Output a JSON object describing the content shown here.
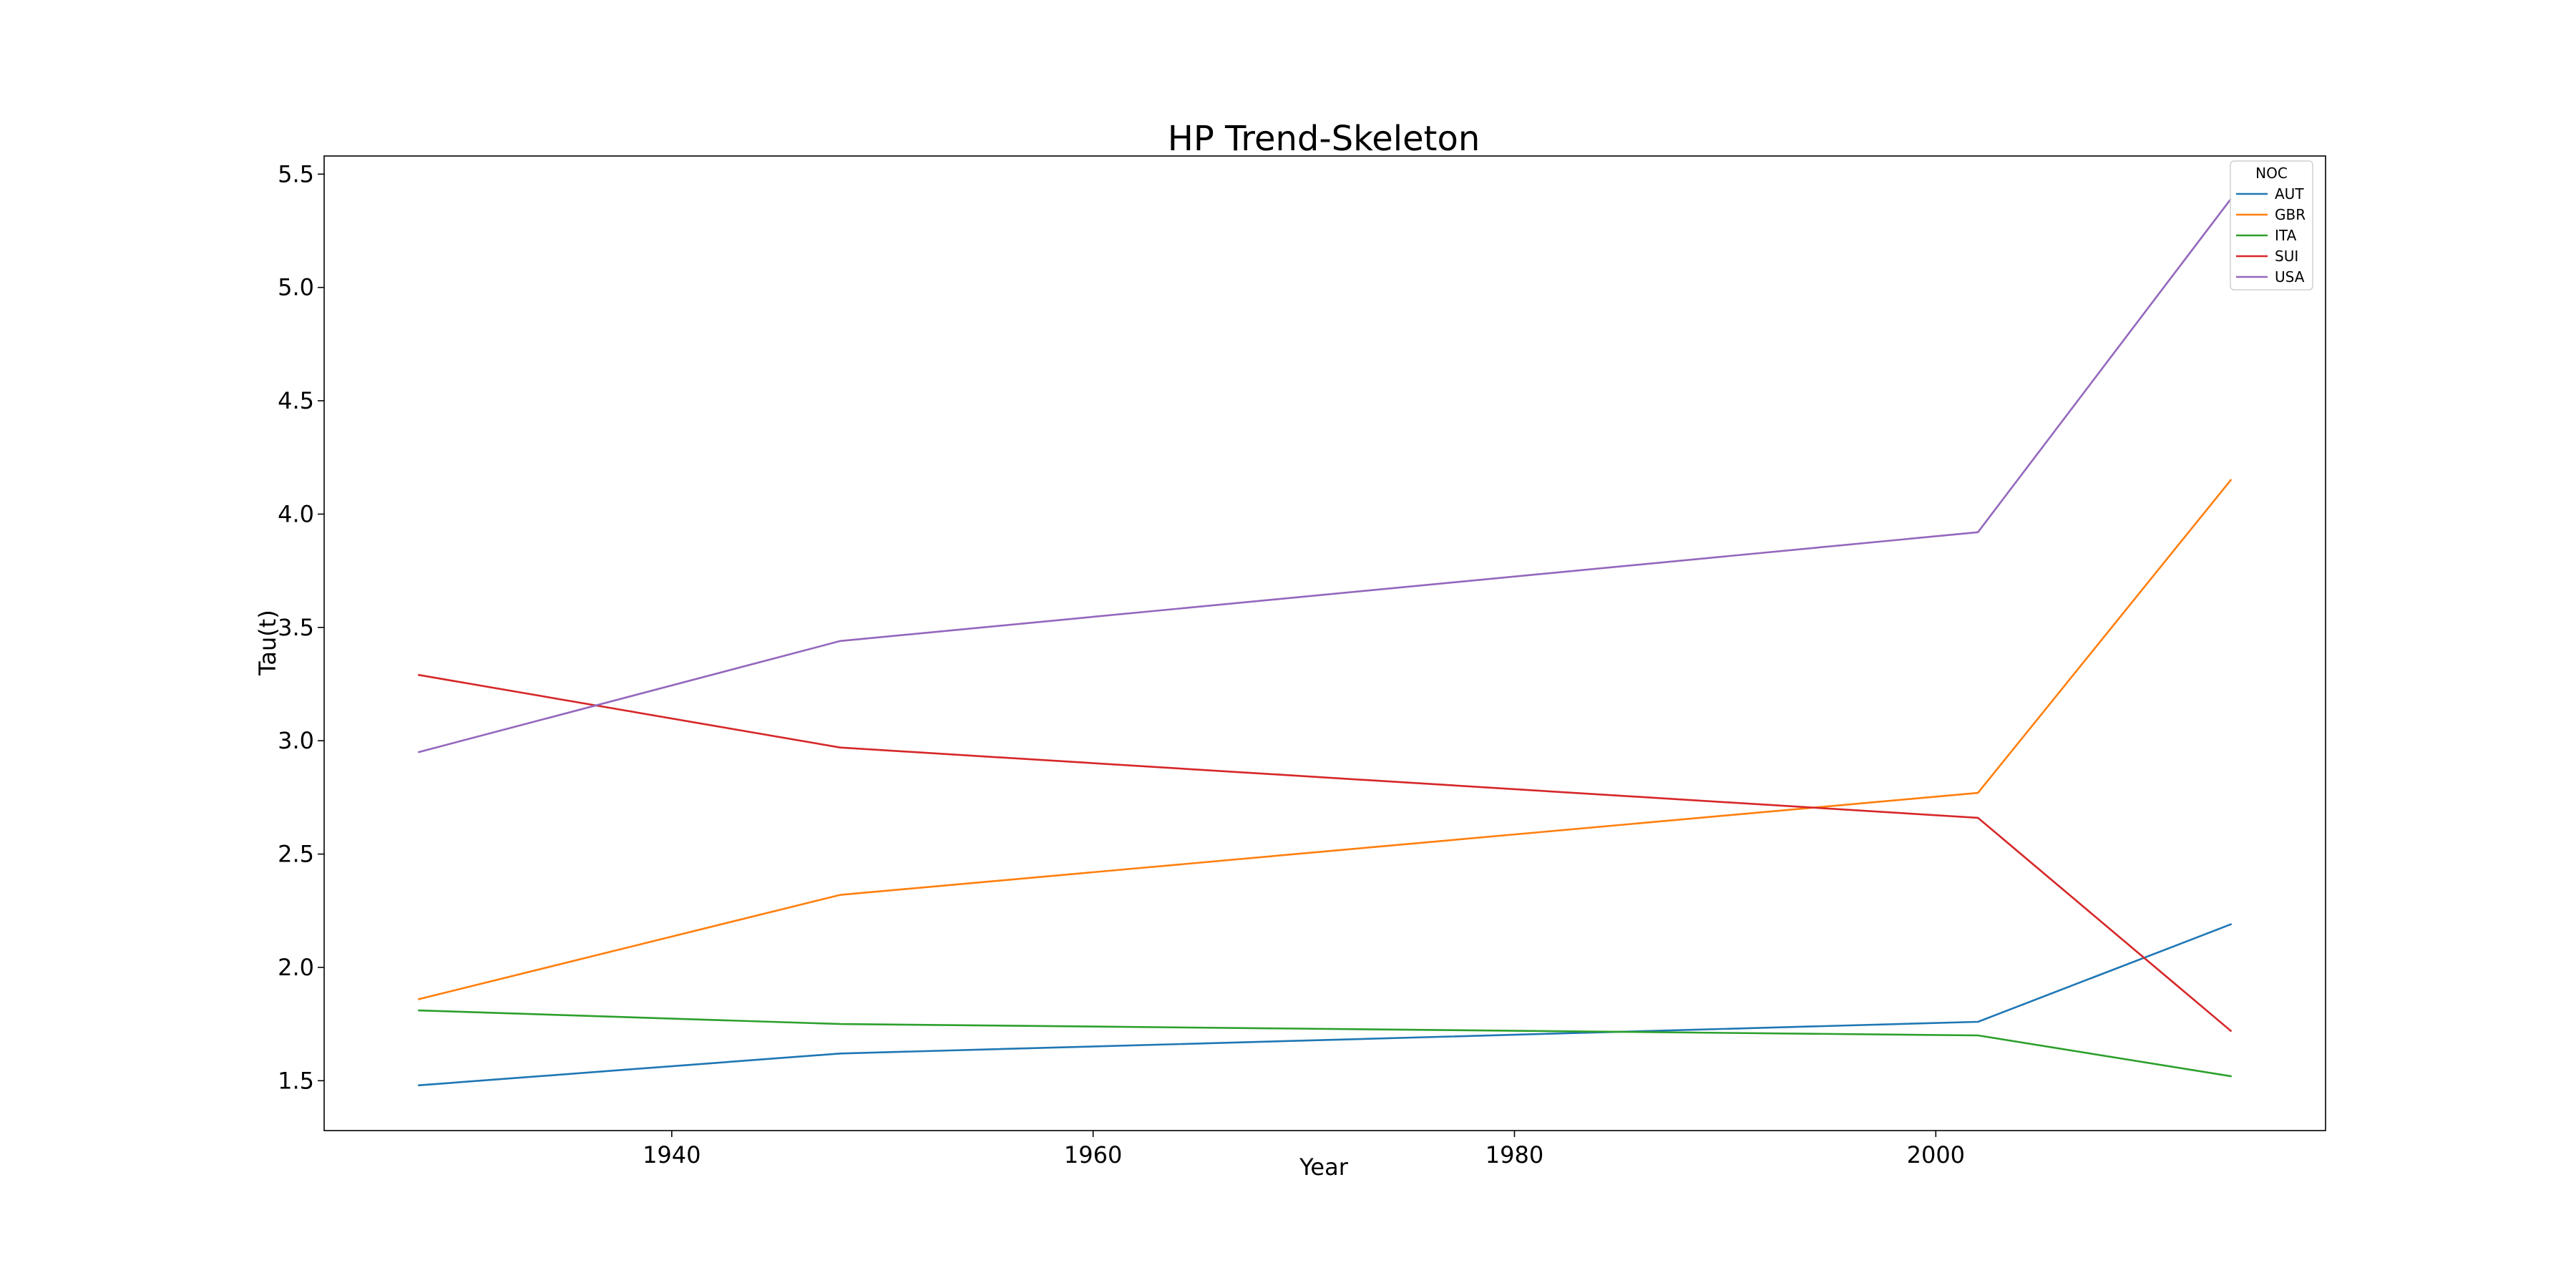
{
  "chart_data": {
    "type": "line",
    "title": "HP Trend-Skeleton",
    "xlabel": "Year",
    "ylabel": "Tau(t)",
    "x": [
      1928,
      1948,
      2002,
      2014
    ],
    "xlim": [
      1923.5,
      2018.5
    ],
    "ylim": [
      1.28,
      5.58
    ],
    "x_ticks": [
      1940,
      1960,
      1980,
      2000
    ],
    "x_tick_labels": [
      "1940",
      "1960",
      "1980",
      "2000"
    ],
    "y_ticks": [
      1.5,
      2.0,
      2.5,
      3.0,
      3.5,
      4.0,
      4.5,
      5.0,
      5.5
    ],
    "y_tick_labels": [
      "1.5",
      "2.0",
      "2.5",
      "3.0",
      "3.5",
      "4.0",
      "4.5",
      "5.0",
      "5.5"
    ],
    "grid": false,
    "legend": {
      "title": "NOC",
      "position": "top-right"
    },
    "series": [
      {
        "name": "AUT",
        "color": "#1f77b4",
        "values": [
          1.48,
          1.62,
          1.76,
          2.19
        ]
      },
      {
        "name": "GBR",
        "color": "#ff7f0e",
        "values": [
          1.86,
          2.32,
          2.77,
          4.15
        ]
      },
      {
        "name": "ITA",
        "color": "#2ca02c",
        "values": [
          1.81,
          1.75,
          1.7,
          1.52
        ]
      },
      {
        "name": "SUI",
        "color": "#d62728",
        "values": [
          3.29,
          2.97,
          2.66,
          1.72
        ]
      },
      {
        "name": "USA",
        "color": "#9467bd",
        "values": [
          2.95,
          3.44,
          3.92,
          5.39
        ]
      }
    ]
  }
}
